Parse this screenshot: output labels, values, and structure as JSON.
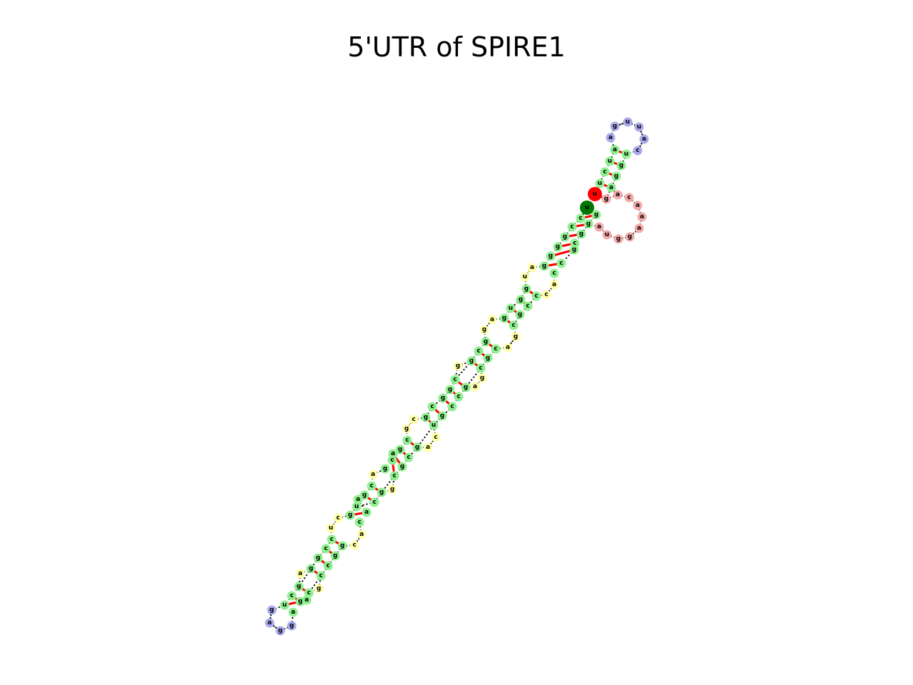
{
  "title": "5'UTR of SPIRE1",
  "legend": {
    "stem": "#8ef08e",
    "hairpin_loop": "#aaaaee",
    "interior_loop": "#ffffaa",
    "multi_loop": "#f4aaaa",
    "five_prime_end": "#ff0000",
    "three_prime_end": "#007700",
    "base_pair": "#ff0000",
    "backbone": "#000000"
  }
}
